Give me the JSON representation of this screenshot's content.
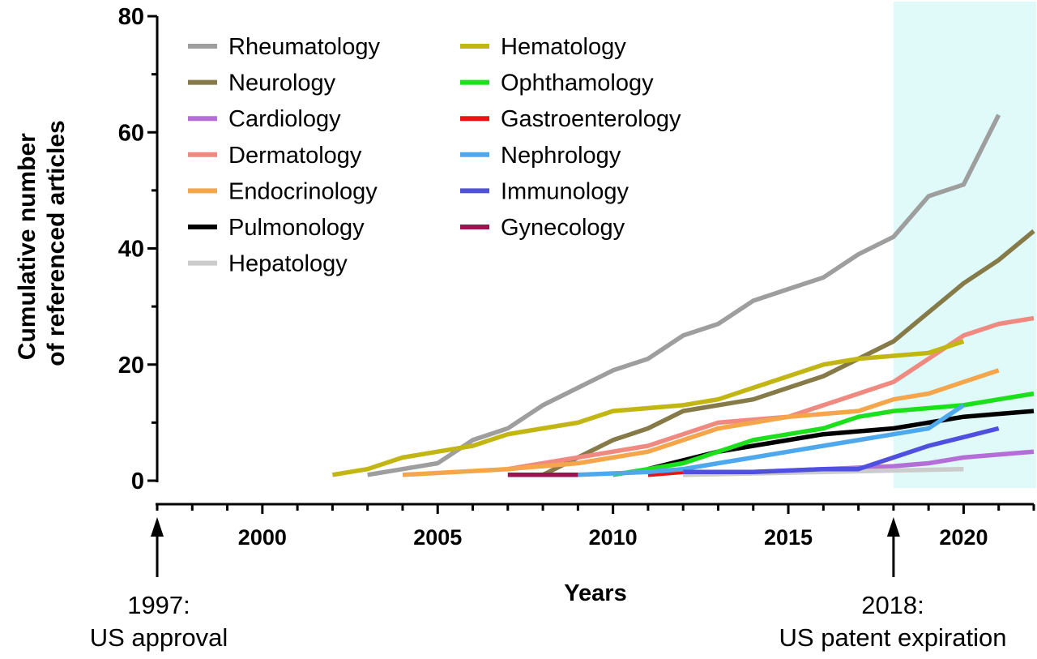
{
  "chart_data": {
    "type": "line",
    "xlabel": "Years",
    "ylabel_lines": [
      "Cumulative number",
      "of referenced articles"
    ],
    "xlim": [
      1997,
      2022
    ],
    "ylim": [
      0,
      80
    ],
    "x_ticks": [
      2000,
      2005,
      2010,
      2015,
      2020
    ],
    "y_ticks": [
      0,
      20,
      40,
      60,
      80
    ],
    "grid": false,
    "legend_position": "top-left",
    "highlight_region": {
      "x_start": 2018,
      "x_end": 2022,
      "color": "#e0fafa"
    },
    "annotations": [
      {
        "x": 1997,
        "lines": [
          "1997:",
          "US approval"
        ]
      },
      {
        "x": 2018,
        "lines": [
          "2018:",
          "US patent expiration"
        ]
      }
    ],
    "series": [
      {
        "name": "Rheumatology",
        "color": "#9e9e9e",
        "x": [
          2003,
          2004,
          2005,
          2006,
          2007,
          2008,
          2009,
          2010,
          2011,
          2012,
          2013,
          2014,
          2015,
          2016,
          2017,
          2018,
          2019,
          2020,
          2021
        ],
        "y": [
          1,
          2,
          3,
          7,
          9,
          13,
          16,
          19,
          21,
          25,
          27,
          31,
          33,
          35,
          39,
          42,
          49,
          51,
          63
        ]
      },
      {
        "name": "Neurology",
        "color": "#857a48",
        "x": [
          2008,
          2009,
          2010,
          2011,
          2012,
          2013,
          2014,
          2015,
          2016,
          2017,
          2018,
          2019,
          2020,
          2021,
          2022
        ],
        "y": [
          1,
          4,
          7,
          9,
          12,
          13,
          14,
          16,
          18,
          21,
          24,
          29,
          34,
          38,
          43
        ]
      },
      {
        "name": "Cardiology",
        "color": "#b56ed8",
        "x": [
          2012,
          2014,
          2016,
          2018,
          2019,
          2020,
          2021,
          2022
        ],
        "y": [
          1,
          1.5,
          2,
          2.5,
          3,
          4,
          4.5,
          5
        ]
      },
      {
        "name": "Dermatology",
        "color": "#f08a80",
        "x": [
          2007,
          2008,
          2009,
          2010,
          2011,
          2012,
          2013,
          2014,
          2015,
          2016,
          2017,
          2018,
          2019,
          2020,
          2021,
          2022
        ],
        "y": [
          2,
          3,
          4,
          5,
          6,
          8,
          10,
          10.5,
          11,
          13,
          15,
          17,
          21,
          25,
          27,
          28
        ]
      },
      {
        "name": "Endocrinology",
        "color": "#f5a54a",
        "x": [
          2004,
          2007,
          2008,
          2009,
          2010,
          2011,
          2012,
          2013,
          2014,
          2015,
          2016,
          2017,
          2018,
          2019,
          2020,
          2021
        ],
        "y": [
          1,
          2,
          2.5,
          3,
          4,
          5,
          7,
          9,
          10,
          11,
          11.5,
          12,
          14,
          15,
          17,
          19
        ]
      },
      {
        "name": "Pulmonology",
        "color": "#000000",
        "x": [
          2011,
          2012,
          2013,
          2014,
          2015,
          2016,
          2017,
          2018,
          2019,
          2020,
          2021,
          2022
        ],
        "y": [
          2,
          3.5,
          5,
          6,
          7,
          8,
          8.5,
          9,
          10,
          11,
          11.5,
          12
        ]
      },
      {
        "name": "Hepatology",
        "color": "#cccccc",
        "x": [
          2012,
          2016,
          2020
        ],
        "y": [
          1,
          1.5,
          2
        ]
      },
      {
        "name": "Hematology",
        "color": "#c2b612",
        "x": [
          2002,
          2003,
          2004,
          2005,
          2006,
          2007,
          2008,
          2009,
          2010,
          2011,
          2012,
          2013,
          2014,
          2015,
          2016,
          2017,
          2018,
          2019,
          2020
        ],
        "y": [
          1,
          2,
          4,
          5,
          6,
          8,
          9,
          10,
          12,
          12.5,
          13,
          14,
          16,
          18,
          20,
          21,
          21.5,
          22,
          24
        ]
      },
      {
        "name": "Ophthamology",
        "color": "#1de01d",
        "x": [
          2010,
          2011,
          2012,
          2013,
          2014,
          2015,
          2016,
          2017,
          2018,
          2019,
          2020,
          2021,
          2022
        ],
        "y": [
          1,
          2,
          3,
          5,
          7,
          8,
          9,
          11,
          12,
          12.5,
          13,
          14,
          15
        ]
      },
      {
        "name": "Gastroenterology",
        "color": "#ee1111",
        "x": [
          2011,
          2012
        ],
        "y": [
          1,
          1.5
        ]
      },
      {
        "name": "Nephrology",
        "color": "#4ea8ee",
        "x": [
          2009,
          2011,
          2012,
          2013,
          2014,
          2015,
          2016,
          2017,
          2018,
          2019,
          2020
        ],
        "y": [
          1,
          1.5,
          2,
          3,
          4,
          5,
          6,
          7,
          8,
          9,
          13
        ]
      },
      {
        "name": "Immunology",
        "color": "#5050e0",
        "x": [
          2012,
          2014,
          2016,
          2017,
          2018,
          2019,
          2020,
          2021
        ],
        "y": [
          1.5,
          1.5,
          2,
          2,
          4,
          6,
          7.5,
          9
        ]
      },
      {
        "name": "Gynecology",
        "color": "#9a1550",
        "x": [
          2007,
          2008,
          2009
        ],
        "y": [
          1,
          1,
          1
        ]
      }
    ]
  }
}
